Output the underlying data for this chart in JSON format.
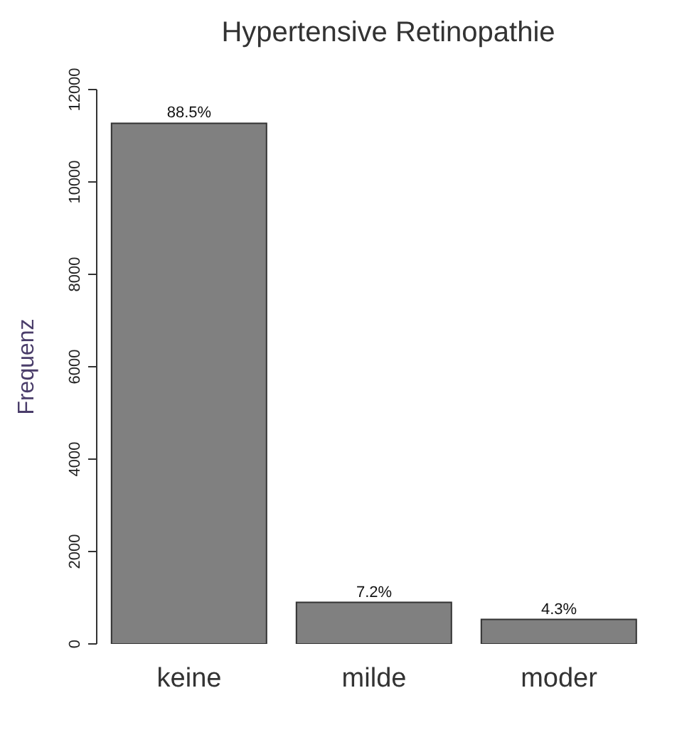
{
  "chart_data": {
    "type": "bar",
    "title": "Hypertensive Retinopathie",
    "ylabel": "Frequenz",
    "categories": [
      "keine",
      "milde",
      "moder"
    ],
    "values": [
      11270,
      900,
      530
    ],
    "annotations": [
      {
        "text": "88.5%",
        "x": "keine",
        "y": 11270
      },
      {
        "text": "7.2%",
        "x": "milde",
        "y": 900
      },
      {
        "text": "4.3%",
        "x": "moder",
        "y": 530
      }
    ],
    "color": "#808080",
    "ylim": [
      0,
      12000
    ],
    "yticks": [
      0,
      2000,
      4000,
      6000,
      8000,
      10000,
      12000
    ],
    "grid": false,
    "legend": false
  }
}
